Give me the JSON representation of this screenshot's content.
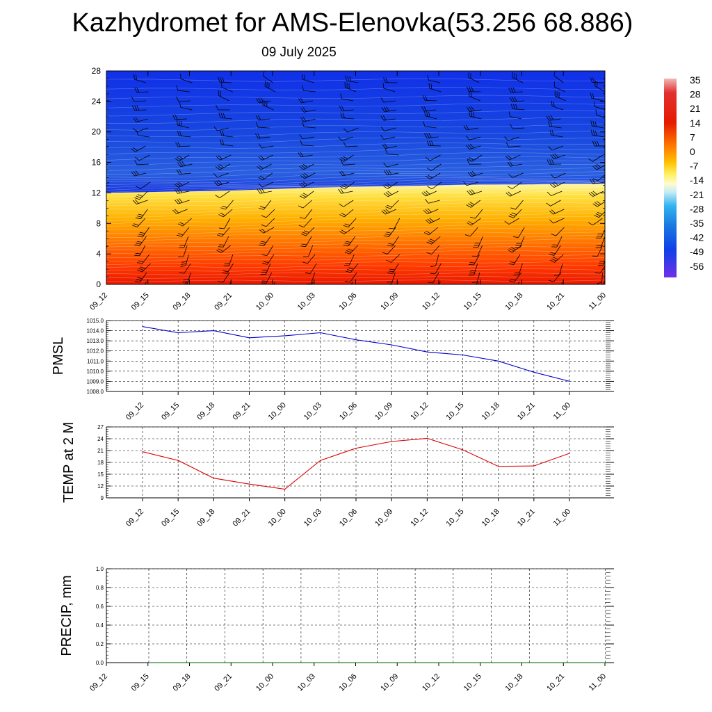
{
  "title": "Kazhydromet for AMS-Elenovka(53.256 68.886)",
  "subtitle": "09 July 2025",
  "times": [
    "09_12",
    "09_15",
    "09_18",
    "09_21",
    "10_00",
    "10_03",
    "10_06",
    "10_09",
    "10_12",
    "10_15",
    "10_18",
    "10_21",
    "11_00"
  ],
  "chart_data": [
    {
      "type": "heatmap",
      "name": "vertical-cross-section",
      "x": [
        "09_12",
        "09_15",
        "09_18",
        "09_21",
        "10_00",
        "10_03",
        "10_06",
        "10_09",
        "10_12",
        "10_15",
        "10_18",
        "10_21",
        "11_00"
      ],
      "y_ticks": [
        0,
        4,
        8,
        12,
        16,
        20,
        24,
        28
      ],
      "ylim": [
        0,
        28
      ],
      "freezing_level": [
        12.0,
        12.1,
        12.2,
        12.3,
        12.5,
        12.7,
        12.8,
        12.9,
        13.0,
        13.1,
        13.1,
        13.2,
        13.2
      ],
      "colorbar": {
        "labels": [
          "35",
          "28",
          "21",
          "14",
          "7",
          "0",
          "-7",
          "-14",
          "-21",
          "-28",
          "-35",
          "-42",
          "-49",
          "-56"
        ],
        "range": [
          -60,
          38
        ]
      },
      "grid": false
    },
    {
      "type": "line",
      "name": "pmsl",
      "ylabel": "PMSL",
      "x": [
        "09_12",
        "09_15",
        "09_18",
        "09_21",
        "10_00",
        "10_03",
        "10_06",
        "10_09",
        "10_12",
        "10_15",
        "10_18",
        "10_21",
        "11_00"
      ],
      "values": [
        1014.4,
        1013.8,
        1014.0,
        1013.3,
        1013.5,
        1013.8,
        1013.1,
        1012.6,
        1011.9,
        1011.6,
        1011.0,
        1009.9,
        1009.0
      ],
      "y_ticks": [
        "1008.0",
        "1009.0",
        "1010.0",
        "1011.0",
        "1012.0",
        "1013.0",
        "1014.0",
        "1015.0"
      ],
      "ylim": [
        1008,
        1015
      ],
      "color": "#0000cc",
      "grid": true
    },
    {
      "type": "line",
      "name": "temp-2m",
      "ylabel": "TEMP at 2 M",
      "x": [
        "09_12",
        "09_15",
        "09_18",
        "09_21",
        "10_00",
        "10_03",
        "10_06",
        "10_09",
        "10_12",
        "10_15",
        "10_18",
        "10_21",
        "11_00"
      ],
      "values": [
        20.7,
        18.5,
        14.0,
        12.5,
        11.2,
        18.5,
        21.6,
        23.3,
        24.1,
        21.2,
        17.0,
        17.1,
        20.3
      ],
      "y_ticks": [
        "9",
        "12",
        "15",
        "18",
        "21",
        "24",
        "27"
      ],
      "ylim": [
        9,
        27
      ],
      "color": "#dd0000",
      "grid": true
    },
    {
      "type": "line",
      "name": "precip",
      "ylabel": "PRECIP, mm",
      "x": [
        "09_12",
        "09_15",
        "09_18",
        "09_21",
        "10_00",
        "10_03",
        "10_06",
        "10_09",
        "10_12",
        "10_15",
        "10_18",
        "10_21",
        "11_00"
      ],
      "values": [
        0,
        0,
        0,
        0,
        0,
        0,
        0,
        0,
        0,
        0,
        0,
        0,
        0
      ],
      "y_ticks": [
        "0.0",
        "0.2",
        "0.4",
        "0.6",
        "0.8",
        "1.0"
      ],
      "ylim": [
        0,
        1
      ],
      "color": "#006600",
      "grid": true
    }
  ]
}
